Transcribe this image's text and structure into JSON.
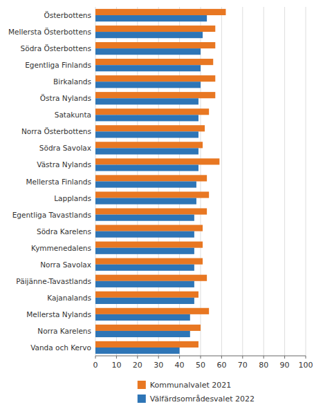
{
  "chart_data": {
    "type": "bar",
    "orientation": "horizontal",
    "categories": [
      "Österbottens",
      "Mellersta Österbottens",
      "Södra Österbottens",
      "Egentliga Finlands",
      "Birkalands",
      "Östra Nylands",
      "Satakunta",
      "Norra Österbottens",
      "Södra Savolax",
      "Västra Nylands",
      "Mellersta Finlands",
      "Lapplands",
      "Egentliga Tavastlands",
      "Södra Karelens",
      "Kymmenedalens",
      "Norra Savolax",
      "Päijänne-Tavastlands",
      "Kajanalands",
      "Mellersta Nylands",
      "Norra Karelens",
      "Vanda och Kervo"
    ],
    "series": [
      {
        "name": "Kommunalvalet 2021",
        "color": "#E87722",
        "values": [
          62,
          57,
          57,
          56,
          57,
          57,
          54,
          52,
          51,
          59,
          53,
          54,
          53,
          51,
          51,
          51,
          53,
          49,
          54,
          50,
          49
        ]
      },
      {
        "name": "Välfärdsområdesvalet 2022",
        "color": "#2E75B6",
        "values": [
          53,
          51,
          50,
          50,
          50,
          49,
          49,
          49,
          49,
          49,
          48,
          48,
          47,
          47,
          47,
          47,
          47,
          47,
          45,
          45,
          40
        ]
      }
    ],
    "xlim": [
      0,
      100
    ],
    "xticks": [
      0,
      10,
      20,
      30,
      40,
      50,
      60,
      70,
      80,
      90,
      100
    ],
    "grid": true,
    "legend": "bottom"
  }
}
